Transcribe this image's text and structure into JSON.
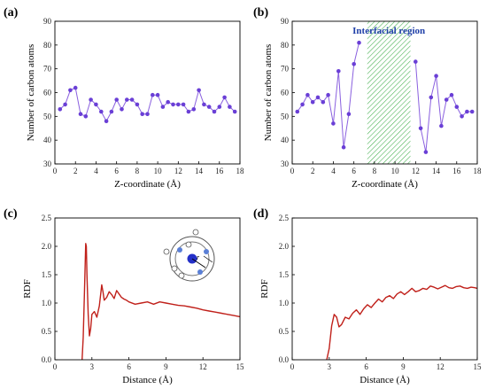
{
  "colors": {
    "scatter_line": "#8a60df",
    "scatter_marker": "#6a3fd6",
    "rdf_line": "#c0201a",
    "region_hatch": "#3fae4a",
    "annotation": "#1f3fa8",
    "inset_blue": "#2430c8",
    "inset_light_blue": "#5a7fd6"
  },
  "chart_data": [
    {
      "id": "a",
      "type": "line",
      "panel_label": "(a)",
      "xlabel": "Z-coordinate (Å)",
      "ylabel": "Number of carbon atoms",
      "xlim": [
        0,
        18
      ],
      "ylim": [
        30,
        90
      ],
      "xticks": [
        0,
        2,
        4,
        6,
        8,
        10,
        12,
        14,
        16,
        18
      ],
      "yticks": [
        30,
        40,
        50,
        60,
        70,
        80,
        90
      ],
      "markers": true,
      "grid": false,
      "x": [
        0.5,
        1.0,
        1.5,
        2.0,
        2.5,
        3.0,
        3.5,
        4.0,
        4.5,
        5.0,
        5.5,
        6.0,
        6.5,
        7.0,
        7.5,
        8.0,
        8.5,
        9.0,
        9.5,
        10.0,
        10.5,
        11.0,
        11.5,
        12.0,
        12.5,
        13.0,
        13.5,
        14.0,
        14.5,
        15.0,
        15.5,
        16.0,
        16.5,
        17.0,
        17.5
      ],
      "y": [
        53,
        55,
        61,
        62,
        51,
        50,
        57,
        55,
        52,
        48,
        52,
        57,
        53,
        57,
        57,
        55,
        51,
        51,
        59,
        59,
        54,
        56,
        55,
        55,
        55,
        52,
        53,
        61,
        55,
        54,
        52,
        54,
        58,
        54,
        52
      ]
    },
    {
      "id": "b",
      "type": "line",
      "panel_label": "(b)",
      "xlabel": "Z-coordinate (Å)",
      "ylabel": "Number of carbon atoms",
      "xlim": [
        0,
        18
      ],
      "ylim": [
        30,
        90
      ],
      "xticks": [
        0,
        2,
        4,
        6,
        8,
        10,
        12,
        14,
        16,
        18
      ],
      "yticks": [
        30,
        40,
        50,
        60,
        70,
        80,
        90
      ],
      "markers": true,
      "grid": false,
      "annotation": "Interfacial region",
      "shaded_region": [
        7.3,
        11.5
      ],
      "series": [
        {
          "x": [
            0.5,
            1.0,
            1.5,
            2.0,
            2.5,
            3.0,
            3.5,
            4.0,
            4.5,
            5.0,
            5.5,
            6.0,
            6.5
          ],
          "y": [
            52,
            55,
            59,
            56,
            58,
            56,
            59,
            47,
            69,
            37,
            51,
            72,
            81
          ]
        },
        {
          "x": [
            12.0,
            12.5,
            13.0,
            13.5,
            14.0,
            14.5,
            15.0,
            15.5,
            16.0,
            16.5,
            17.0,
            17.5
          ],
          "y": [
            73,
            45,
            35,
            58,
            67,
            46,
            57,
            59,
            54,
            50,
            52,
            52
          ]
        }
      ]
    },
    {
      "id": "c",
      "type": "line",
      "panel_label": "(c)",
      "xlabel": "Distance (Å)",
      "ylabel": "RDF",
      "xlim": [
        0,
        15
      ],
      "ylim": [
        0,
        2.5
      ],
      "xticks": [
        0,
        3,
        6,
        9,
        12,
        15
      ],
      "yticks": [
        0.0,
        0.5,
        1.0,
        1.5,
        2.0,
        2.5
      ],
      "ytick_labels": [
        "0.0",
        "0.5",
        "1.0",
        "1.5",
        "2.0",
        "2.5"
      ],
      "grid": false,
      "inset_label": "r",
      "x": [
        2.2,
        2.3,
        2.4,
        2.5,
        2.55,
        2.6,
        2.7,
        2.8,
        2.9,
        3.0,
        3.2,
        3.4,
        3.6,
        3.8,
        3.9,
        4.0,
        4.2,
        4.4,
        4.6,
        4.8,
        5.0,
        5.2,
        5.4,
        5.6,
        5.8,
        6.0,
        6.5,
        7.0,
        7.5,
        8.0,
        8.5,
        9.0,
        9.5,
        10.0,
        10.5,
        11.0,
        11.5,
        12.0,
        12.5,
        13.0,
        13.5,
        14.0,
        14.5,
        15.0
      ],
      "y": [
        0.0,
        0.4,
        1.2,
        2.05,
        2.0,
        1.5,
        0.8,
        0.42,
        0.55,
        0.8,
        0.85,
        0.75,
        0.95,
        1.32,
        1.2,
        1.05,
        1.1,
        1.2,
        1.15,
        1.08,
        1.22,
        1.16,
        1.1,
        1.07,
        1.05,
        1.02,
        0.98,
        1.0,
        1.02,
        0.98,
        1.02,
        1.0,
        0.98,
        0.96,
        0.95,
        0.93,
        0.91,
        0.88,
        0.86,
        0.84,
        0.82,
        0.8,
        0.78,
        0.76
      ]
    },
    {
      "id": "d",
      "type": "line",
      "panel_label": "(d)",
      "xlabel": "Distance (Å)",
      "ylabel": "RDF",
      "xlim": [
        0,
        15
      ],
      "ylim": [
        0,
        2.5
      ],
      "xticks": [
        0,
        3,
        6,
        9,
        12,
        15
      ],
      "yticks": [
        0.0,
        0.5,
        1.0,
        1.5,
        2.0,
        2.5
      ],
      "ytick_labels": [
        "0.0",
        "0.5",
        "1.0",
        "1.5",
        "2.0",
        "2.5"
      ],
      "grid": false,
      "x": [
        2.8,
        3.0,
        3.2,
        3.4,
        3.6,
        3.8,
        4.0,
        4.3,
        4.6,
        4.9,
        5.2,
        5.5,
        5.8,
        6.1,
        6.4,
        6.7,
        7.0,
        7.3,
        7.6,
        7.9,
        8.2,
        8.5,
        8.8,
        9.1,
        9.4,
        9.7,
        10.0,
        10.3,
        10.6,
        10.9,
        11.2,
        11.5,
        11.8,
        12.1,
        12.4,
        12.7,
        13.0,
        13.3,
        13.6,
        13.9,
        14.2,
        14.5,
        14.8,
        15.0
      ],
      "y": [
        0.0,
        0.2,
        0.6,
        0.8,
        0.75,
        0.58,
        0.62,
        0.75,
        0.72,
        0.82,
        0.88,
        0.8,
        0.9,
        0.97,
        0.92,
        1.0,
        1.07,
        1.02,
        1.1,
        1.13,
        1.08,
        1.16,
        1.2,
        1.15,
        1.2,
        1.26,
        1.2,
        1.22,
        1.26,
        1.24,
        1.3,
        1.28,
        1.25,
        1.28,
        1.31,
        1.27,
        1.26,
        1.29,
        1.3,
        1.27,
        1.26,
        1.28,
        1.27,
        1.26
      ]
    }
  ]
}
